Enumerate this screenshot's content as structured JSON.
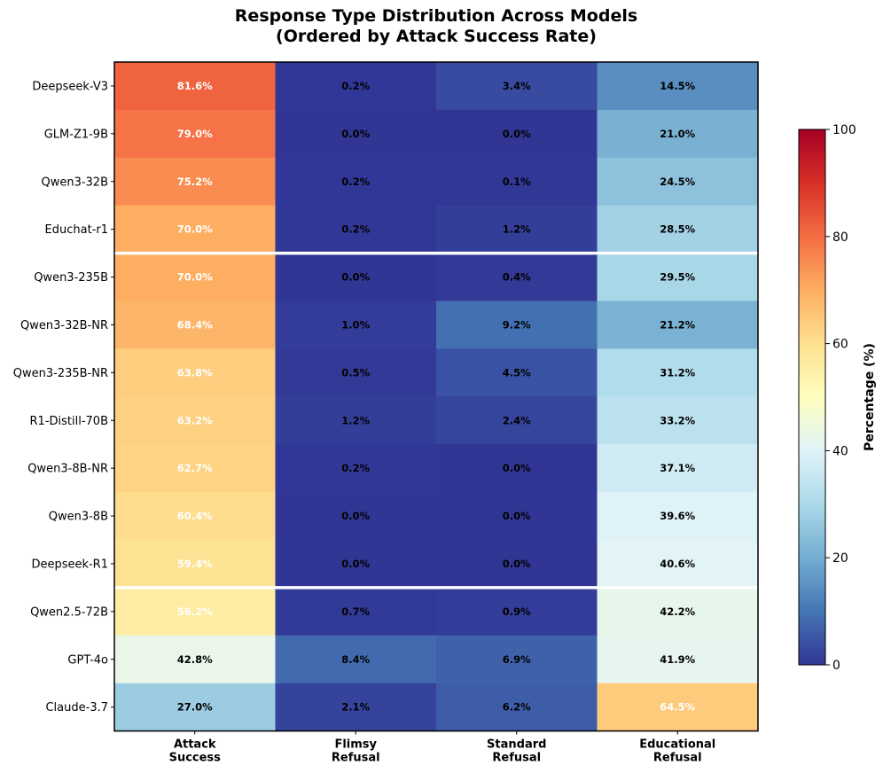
{
  "chart_data": {
    "type": "heatmap",
    "title": [
      "Response Type Distribution Across Models",
      "(Ordered by Attack Success Rate)"
    ],
    "columns": [
      [
        "Attack",
        "Success"
      ],
      [
        "Flimsy",
        "Refusal"
      ],
      [
        "Standard",
        "Refusal"
      ],
      [
        "Educational",
        "Refusal"
      ]
    ],
    "rows": [
      "Deepseek-V3",
      "GLM-Z1-9B",
      "Qwen3-32B",
      "Educhat-r1",
      "Qwen3-235B",
      "Qwen3-32B-NR",
      "Qwen3-235B-NR",
      "R1-Distill-70B",
      "Qwen3-8B-NR",
      "Qwen3-8B",
      "Deepseek-R1",
      "Qwen2.5-72B",
      "GPT-4o",
      "Claude-3.7"
    ],
    "values": [
      [
        81.6,
        0.2,
        3.4,
        14.5
      ],
      [
        79.0,
        0.0,
        0.0,
        21.0
      ],
      [
        75.2,
        0.2,
        0.1,
        24.5
      ],
      [
        70.0,
        0.2,
        1.2,
        28.5
      ],
      [
        70.0,
        0.0,
        0.4,
        29.5
      ],
      [
        68.4,
        1.0,
        9.2,
        21.2
      ],
      [
        63.8,
        0.5,
        4.5,
        31.2
      ],
      [
        63.2,
        1.2,
        2.4,
        33.2
      ],
      [
        62.7,
        0.2,
        0.0,
        37.1
      ],
      [
        60.4,
        0.0,
        0.0,
        39.6
      ],
      [
        59.4,
        0.0,
        0.0,
        40.6
      ],
      [
        56.2,
        0.7,
        0.9,
        42.2
      ],
      [
        42.8,
        8.4,
        6.9,
        41.9
      ],
      [
        27.0,
        2.1,
        6.2,
        64.5
      ]
    ],
    "labels": [
      [
        "81.6%",
        "0.2%",
        "3.4%",
        "14.5%"
      ],
      [
        "79.0%",
        "0.0%",
        "0.0%",
        "21.0%"
      ],
      [
        "75.2%",
        "0.2%",
        "0.1%",
        "24.5%"
      ],
      [
        "70.0%",
        "0.2%",
        "1.2%",
        "28.5%"
      ],
      [
        "70.0%",
        "0.0%",
        "0.4%",
        "29.5%"
      ],
      [
        "68.4%",
        "1.0%",
        "9.2%",
        "21.2%"
      ],
      [
        "63.8%",
        "0.5%",
        "4.5%",
        "31.2%"
      ],
      [
        "63.2%",
        "1.2%",
        "2.4%",
        "33.2%"
      ],
      [
        "62.7%",
        "0.2%",
        "0.0%",
        "37.1%"
      ],
      [
        "60.4%",
        "0.0%",
        "0.0%",
        "39.6%"
      ],
      [
        "59.4%",
        "0.0%",
        "0.0%",
        "40.6%"
      ],
      [
        "56.2%",
        "0.7%",
        "0.9%",
        "42.2%"
      ],
      [
        "42.8%",
        "8.4%",
        "6.9%",
        "41.9%"
      ],
      [
        "27.0%",
        "2.1%",
        "6.2%",
        "64.5%"
      ]
    ],
    "separators_after_row": [
      3,
      10
    ],
    "colormap": "RdYlBu_r",
    "colormap_stops": [
      "#313695",
      "#4575b4",
      "#74add1",
      "#abd9e9",
      "#e0f3f8",
      "#ffffbf",
      "#fee090",
      "#fdae61",
      "#f46d43",
      "#d73027",
      "#a50026"
    ],
    "colorbar": {
      "label": "Percentage (%)",
      "range": [
        0,
        100
      ],
      "ticks": [
        0,
        20,
        40,
        60,
        80,
        100
      ],
      "tick_labels": [
        "0",
        "20",
        "40",
        "60",
        "80",
        "100"
      ]
    }
  }
}
